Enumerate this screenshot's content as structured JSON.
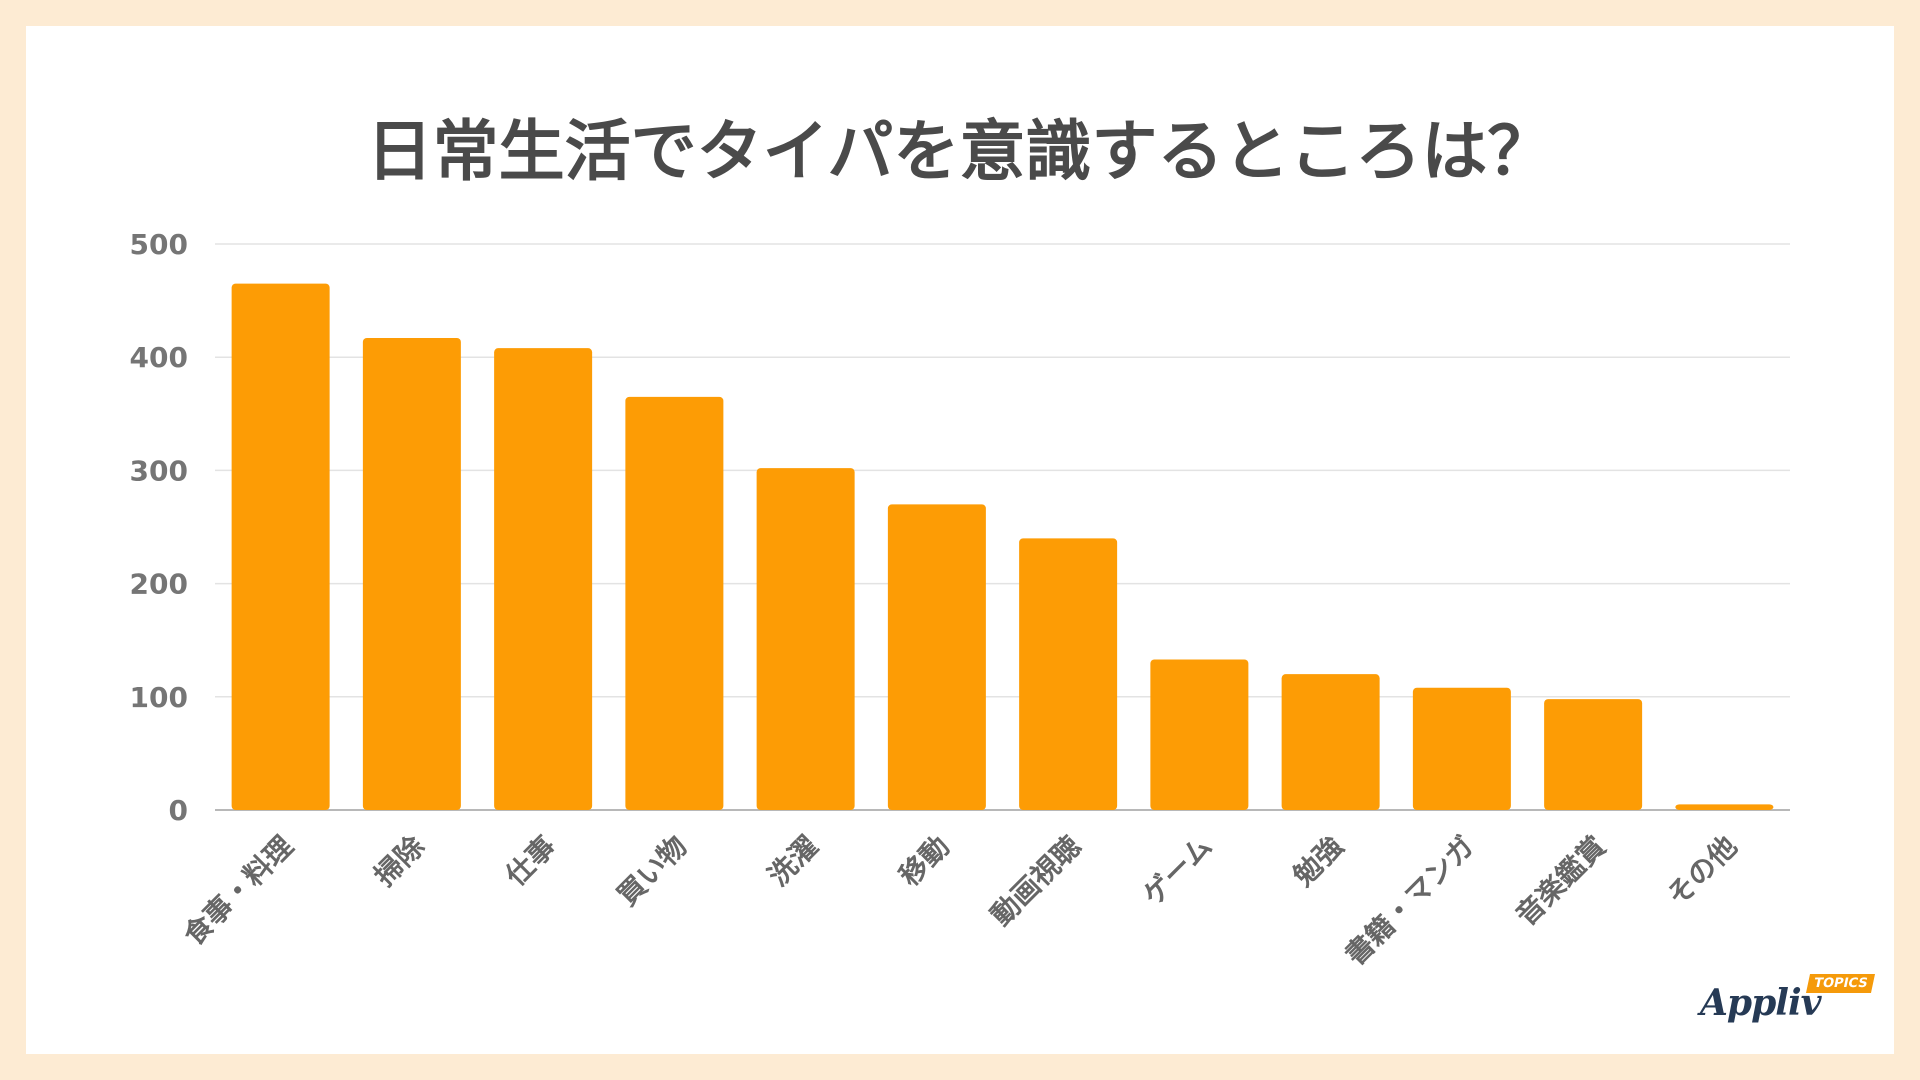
{
  "title": "日常生活でタイパを意識するところは？",
  "logo": {
    "word": "Appliv",
    "badge": "TOPICS"
  },
  "colors": {
    "bar": "#fd9c05",
    "grid": "#e3e3e3",
    "axis": "#b8b8b8"
  },
  "chart_data": {
    "type": "bar",
    "categories": [
      "食事・料理",
      "掃除",
      "仕事",
      "買い物",
      "洗濯",
      "移動",
      "動画視聴",
      "ゲーム",
      "勉強",
      "書籍・マンガ",
      "音楽鑑賞",
      "その他"
    ],
    "values": [
      465,
      417,
      408,
      365,
      302,
      270,
      240,
      133,
      120,
      108,
      98,
      5
    ],
    "ylim": [
      0,
      500
    ],
    "yticks": [
      0,
      100,
      200,
      300,
      400,
      500
    ],
    "grid": true,
    "legend": "none"
  }
}
